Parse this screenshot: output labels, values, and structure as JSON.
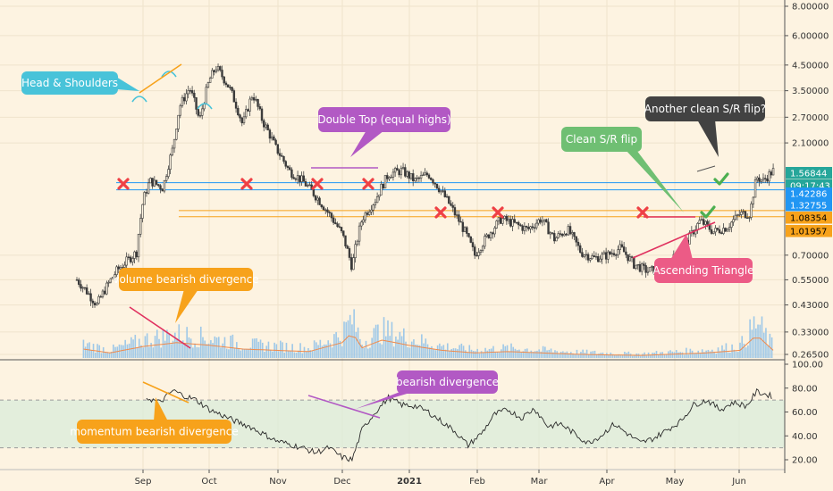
{
  "chart_data": {
    "type": "candlestick",
    "price_scale": "log",
    "x_ticks": [
      "Sep",
      "Oct",
      "Nov",
      "Dec",
      "2021",
      "Feb",
      "Mar",
      "Apr",
      "May",
      "Jun"
    ],
    "y_ticks": [
      "8.00000",
      "6.00000",
      "4.50000",
      "3.50000",
      "2.70000",
      "2.10000",
      "0.70000",
      "0.55000",
      "0.43000",
      "0.33000",
      "0.26500"
    ],
    "y_tick_values": [
      8.0,
      6.0,
      4.5,
      3.5,
      2.7,
      2.1,
      0.7,
      0.55,
      0.43,
      0.33,
      0.265
    ],
    "price_tags": [
      {
        "label": "1.56844",
        "value": 1.56844,
        "color": "#26a69a",
        "text_color": "#ffffff"
      },
      {
        "label": "09:17:43",
        "value": 1.495,
        "color": "#26a69a",
        "text_color": "#ffffff"
      },
      {
        "label": "1.42286",
        "value": 1.42286,
        "color": "#2196f3",
        "text_color": "#ffffff"
      },
      {
        "label": "1.32755",
        "value": 1.32755,
        "color": "#2196f3",
        "text_color": "#ffffff"
      },
      {
        "label": "1.08354",
        "value": 1.08354,
        "color": "#f7a21b",
        "text_color": "#000000"
      },
      {
        "label": "1.01957",
        "value": 1.01957,
        "color": "#f7a21b",
        "text_color": "#000000"
      }
    ],
    "support_resistance_lines": [
      {
        "value": 1.42286,
        "color": "#2196f3"
      },
      {
        "value": 1.32755,
        "color": "#2196f3"
      },
      {
        "value": 1.08354,
        "color": "#f7a21b"
      },
      {
        "value": 1.01957,
        "color": "#f7a21b"
      }
    ],
    "price_path": [
      [
        0.0,
        0.55
      ],
      [
        0.3,
        0.43
      ],
      [
        0.6,
        0.6
      ],
      [
        0.9,
        0.72
      ],
      [
        1.0,
        1.2
      ],
      [
        1.1,
        1.45
      ],
      [
        1.3,
        1.35
      ],
      [
        1.45,
        2.0
      ],
      [
        1.55,
        3.0
      ],
      [
        1.7,
        3.6
      ],
      [
        1.85,
        2.6
      ],
      [
        2.0,
        3.9
      ],
      [
        2.1,
        4.4
      ],
      [
        2.3,
        3.6
      ],
      [
        2.5,
        2.5
      ],
      [
        2.65,
        3.4
      ],
      [
        2.8,
        2.6
      ],
      [
        3.0,
        2.0
      ],
      [
        3.2,
        1.6
      ],
      [
        3.4,
        1.45
      ],
      [
        3.6,
        1.25
      ],
      [
        3.8,
        1.05
      ],
      [
        4.0,
        0.86
      ],
      [
        4.15,
        0.62
      ],
      [
        4.3,
        1.0
      ],
      [
        4.5,
        1.2
      ],
      [
        4.7,
        1.55
      ],
      [
        4.9,
        1.6
      ],
      [
        5.1,
        1.45
      ],
      [
        5.3,
        1.55
      ],
      [
        5.5,
        1.3
      ],
      [
        5.7,
        1.05
      ],
      [
        5.85,
        0.88
      ],
      [
        6.0,
        0.7
      ],
      [
        6.2,
        0.85
      ],
      [
        6.4,
        1.0
      ],
      [
        6.6,
        0.95
      ],
      [
        6.8,
        0.9
      ],
      [
        7.0,
        1.0
      ],
      [
        7.2,
        0.82
      ],
      [
        7.4,
        0.9
      ],
      [
        7.6,
        0.72
      ],
      [
        7.8,
        0.68
      ],
      [
        8.0,
        0.7
      ],
      [
        8.2,
        0.75
      ],
      [
        8.4,
        0.64
      ],
      [
        8.6,
        0.6
      ],
      [
        8.8,
        0.61
      ],
      [
        9.0,
        0.68
      ],
      [
        9.2,
        0.8
      ],
      [
        9.4,
        0.98
      ],
      [
        9.6,
        0.88
      ],
      [
        9.8,
        0.92
      ],
      [
        10.0,
        1.05
      ],
      [
        10.15,
        1.05
      ],
      [
        10.25,
        1.5
      ],
      [
        10.35,
        1.45
      ],
      [
        10.5,
        1.6
      ]
    ],
    "volume_path": [
      [
        0.1,
        0.35
      ],
      [
        0.5,
        0.2
      ],
      [
        1.0,
        0.45
      ],
      [
        1.5,
        0.6
      ],
      [
        2.0,
        0.5
      ],
      [
        2.5,
        0.35
      ],
      [
        3.0,
        0.3
      ],
      [
        3.5,
        0.25
      ],
      [
        4.0,
        0.6
      ],
      [
        4.15,
        1.0
      ],
      [
        4.3,
        0.4
      ],
      [
        4.6,
        0.7
      ],
      [
        5.0,
        0.5
      ],
      [
        5.5,
        0.3
      ],
      [
        6.0,
        0.2
      ],
      [
        6.5,
        0.25
      ],
      [
        7.0,
        0.2
      ],
      [
        7.5,
        0.15
      ],
      [
        8.0,
        0.12
      ],
      [
        8.5,
        0.1
      ],
      [
        9.0,
        0.15
      ],
      [
        9.5,
        0.2
      ],
      [
        10.0,
        0.3
      ],
      [
        10.25,
        0.9
      ],
      [
        10.5,
        0.3
      ]
    ],
    "oscillator": {
      "y_ticks": [
        "100.00",
        "80.00",
        "60.00",
        "40.00",
        "20.00"
      ],
      "y_tick_values": [
        100,
        80,
        60,
        40,
        20
      ],
      "band": [
        30,
        70
      ],
      "path": [
        [
          1.05,
          72
        ],
        [
          1.25,
          68
        ],
        [
          1.45,
          78
        ],
        [
          1.6,
          74
        ],
        [
          1.8,
          70
        ],
        [
          2.0,
          62
        ],
        [
          2.2,
          57
        ],
        [
          2.4,
          52
        ],
        [
          2.6,
          48
        ],
        [
          2.8,
          42
        ],
        [
          3.0,
          36
        ],
        [
          3.2,
          33
        ],
        [
          3.4,
          30
        ],
        [
          3.6,
          26
        ],
        [
          3.8,
          30
        ],
        [
          4.0,
          22
        ],
        [
          4.15,
          20
        ],
        [
          4.3,
          45
        ],
        [
          4.5,
          60
        ],
        [
          4.7,
          72
        ],
        [
          4.9,
          66
        ],
        [
          5.1,
          65
        ],
        [
          5.3,
          60
        ],
        [
          5.5,
          52
        ],
        [
          5.7,
          44
        ],
        [
          5.9,
          32
        ],
        [
          6.1,
          42
        ],
        [
          6.3,
          58
        ],
        [
          6.5,
          62
        ],
        [
          6.7,
          55
        ],
        [
          6.9,
          63
        ],
        [
          7.1,
          48
        ],
        [
          7.3,
          50
        ],
        [
          7.5,
          42
        ],
        [
          7.7,
          34
        ],
        [
          7.9,
          40
        ],
        [
          8.1,
          50
        ],
        [
          8.3,
          42
        ],
        [
          8.5,
          34
        ],
        [
          8.7,
          38
        ],
        [
          8.9,
          45
        ],
        [
          9.1,
          52
        ],
        [
          9.3,
          66
        ],
        [
          9.5,
          70
        ],
        [
          9.7,
          62
        ],
        [
          9.9,
          68
        ],
        [
          10.1,
          65
        ],
        [
          10.25,
          77
        ],
        [
          10.5,
          73
        ]
      ]
    },
    "annotations": [
      {
        "text": "Head & Shoulders",
        "color": "#48c3d9"
      },
      {
        "text": "Double Top (equal highs)",
        "color": "#b259c4"
      },
      {
        "text": "Clean S/R flip",
        "color": "#6fbf73"
      },
      {
        "text": "Another clean S/R flip?",
        "color": "#424242"
      },
      {
        "text": "volume bearish divergence",
        "color": "#f7a21b"
      },
      {
        "text": "Ascending Triangle",
        "color": "#ec5b86"
      },
      {
        "text": "bearish divergence",
        "color": "#b259c4"
      },
      {
        "text": "momentum bearish divergence",
        "color": "#f7a21b"
      }
    ],
    "rejection_markers": [
      [
        1.25,
        1.42
      ],
      [
        3.15,
        1.42
      ],
      [
        4.75,
        1.42
      ],
      [
        5.95,
        1.12
      ],
      [
        6.65,
        1.12
      ],
      [
        7.35,
        1.12
      ],
      [
        9.55,
        1.12
      ]
    ],
    "confirmation_markers": [
      [
        10.85,
        1.48
      ],
      [
        10.65,
        1.1
      ]
    ]
  }
}
